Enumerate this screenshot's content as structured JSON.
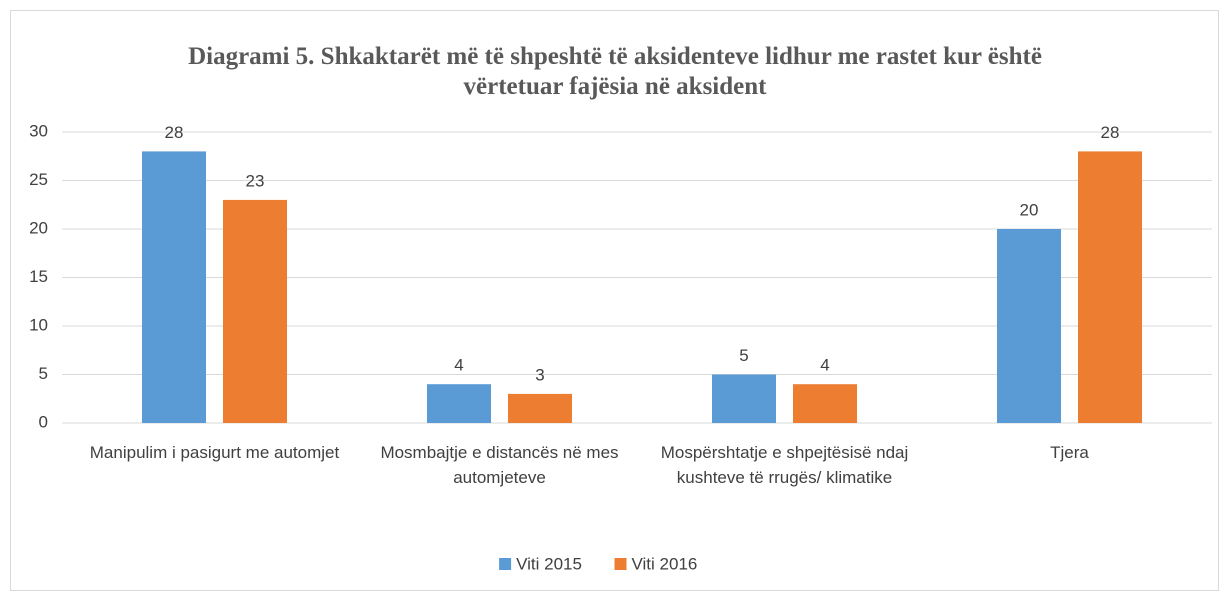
{
  "chart_data": {
    "type": "bar",
    "title": "Diagrami 5. Shkaktarët më të shpeshtë të aksidenteve lidhur me rastet kur është vërtetuar fajësia në aksident",
    "categories": [
      "Manipulim i pasigurt me automjet",
      "Mosmbajtje e distancës në mes automjeteve",
      "Mospërshtatje e shpejtësisë ndaj kushteve të rrugës/ klimatike",
      "Tjera"
    ],
    "series": [
      {
        "name": "Viti 2015",
        "color": "#5b9bd5",
        "values": [
          28,
          4,
          5,
          20
        ]
      },
      {
        "name": "Viti 2016",
        "color": "#ed7d31",
        "values": [
          23,
          3,
          4,
          28
        ]
      }
    ],
    "ylim": [
      0,
      30
    ],
    "yticks": [
      0,
      5,
      10,
      15,
      20,
      25,
      30
    ],
    "grid": true,
    "legend": "bottom"
  }
}
